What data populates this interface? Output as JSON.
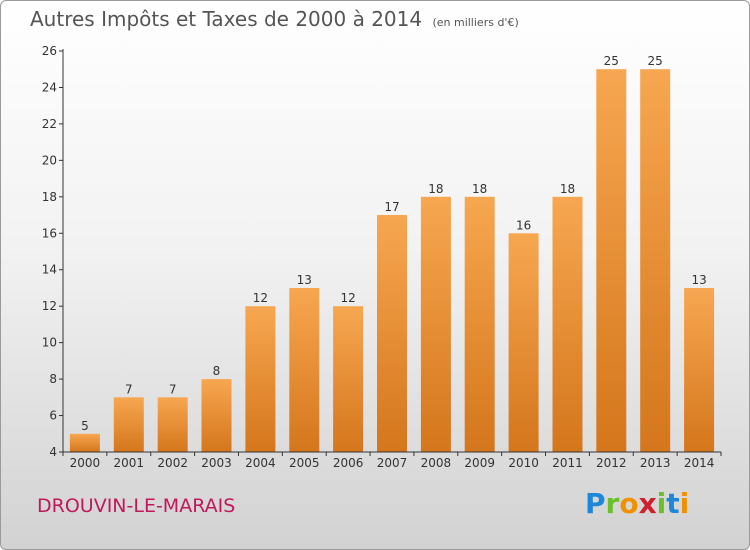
{
  "header": {
    "title": "Autres Impôts et Taxes de 2000 à 2014",
    "subtitle": "(en milliers d'€)"
  },
  "footer": {
    "commune": "DROUVIN-LE-MARAIS",
    "logo": "Proxiti"
  },
  "colors": {
    "bar_top": "#f7a751",
    "bar_bottom": "#d4761c",
    "commune_text": "#c2185b",
    "axis": "#333333"
  },
  "chart_data": {
    "type": "bar",
    "title": "Autres Impôts et Taxes de 2000 à 2014",
    "subtitle": "(en milliers d'€)",
    "categories": [
      "2000",
      "2001",
      "2002",
      "2003",
      "2004",
      "2005",
      "2006",
      "2007",
      "2008",
      "2009",
      "2010",
      "2011",
      "2012",
      "2013",
      "2014"
    ],
    "values": [
      5,
      7,
      7,
      8,
      12,
      13,
      12,
      17,
      18,
      18,
      16,
      18,
      25,
      25,
      13
    ],
    "ylim": [
      4,
      26
    ],
    "yticks": [
      4,
      6,
      8,
      10,
      12,
      14,
      16,
      18,
      20,
      22,
      24,
      26
    ],
    "xlabel": "",
    "ylabel": "",
    "grid": false,
    "data_labels": true
  }
}
